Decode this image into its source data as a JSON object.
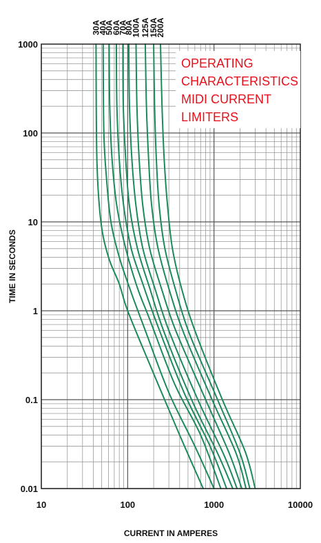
{
  "chart_data": {
    "type": "line",
    "title": "",
    "xlabel": "CURRENT IN AMPERES",
    "ylabel": "TIME IN SECONDS",
    "x_scale": "log",
    "y_scale": "log",
    "xlim": [
      10,
      10000
    ],
    "ylim": [
      0.01,
      1000
    ],
    "x_ticks": [
      {
        "value": 10,
        "label": "10"
      },
      {
        "value": 100,
        "label": "100"
      },
      {
        "value": 1000,
        "label": "1000"
      },
      {
        "value": 10000,
        "label": "10000"
      }
    ],
    "y_ticks": [
      {
        "value": 1000,
        "label": "1000"
      },
      {
        "value": 100,
        "label": "100"
      },
      {
        "value": 10,
        "label": "10"
      },
      {
        "value": 1,
        "label": "1"
      },
      {
        "value": 0.1,
        "label": "0.1"
      },
      {
        "value": 0.01,
        "label": "0.01"
      }
    ],
    "grid": true,
    "annotation": [
      "OPERATING",
      "CHARACTERISTICS",
      "MIDI CURRENT",
      "LIMITERS"
    ],
    "annotation_color": "#e8101a",
    "line_color": "#1a8a5a",
    "series": [
      {
        "name": "30A",
        "points": [
          [
            43,
            1000
          ],
          [
            44,
            50
          ],
          [
            49,
            10
          ],
          [
            60,
            4
          ],
          [
            80,
            2
          ],
          [
            100,
            1
          ],
          [
            180,
            0.25
          ],
          [
            400,
            0.04
          ],
          [
            750,
            0.01
          ]
        ]
      },
      {
        "name": "40A",
        "points": [
          [
            52,
            1000
          ],
          [
            53,
            100
          ],
          [
            57,
            30
          ],
          [
            64,
            10
          ],
          [
            80,
            4
          ],
          [
            110,
            1.6
          ],
          [
            160,
            0.6
          ],
          [
            300,
            0.12
          ],
          [
            600,
            0.03
          ],
          [
            1000,
            0.01
          ]
        ]
      },
      {
        "name": "50A",
        "points": [
          [
            61,
            1000
          ],
          [
            62,
            200
          ],
          [
            66,
            50
          ],
          [
            75,
            15
          ],
          [
            95,
            5
          ],
          [
            130,
            1.8
          ],
          [
            180,
            0.8
          ],
          [
            350,
            0.15
          ],
          [
            700,
            0.04
          ],
          [
            1200,
            0.01
          ]
        ]
      },
      {
        "name": "60A",
        "points": [
          [
            74,
            1000
          ],
          [
            75,
            200
          ],
          [
            80,
            50
          ],
          [
            90,
            15
          ],
          [
            110,
            5
          ],
          [
            150,
            2
          ],
          [
            220,
            0.7
          ],
          [
            450,
            0.12
          ],
          [
            900,
            0.03
          ],
          [
            1400,
            0.01
          ]
        ]
      },
      {
        "name": "70A",
        "points": [
          [
            88,
            1000
          ],
          [
            89,
            200
          ],
          [
            95,
            50
          ],
          [
            105,
            15
          ],
          [
            130,
            5
          ],
          [
            180,
            1.8
          ],
          [
            260,
            0.6
          ],
          [
            550,
            0.1
          ],
          [
            1100,
            0.025
          ],
          [
            1650,
            0.01
          ]
        ]
      },
      {
        "name": "80A",
        "points": [
          [
            103,
            1000
          ],
          [
            105,
            200
          ],
          [
            112,
            50
          ],
          [
            125,
            15
          ],
          [
            150,
            5
          ],
          [
            210,
            1.7
          ],
          [
            300,
            0.6
          ],
          [
            650,
            0.1
          ],
          [
            1300,
            0.024
          ],
          [
            1850,
            0.01
          ]
        ]
      },
      {
        "name": "100A",
        "points": [
          [
            125,
            1000
          ],
          [
            128,
            200
          ],
          [
            136,
            50
          ],
          [
            150,
            15
          ],
          [
            180,
            5
          ],
          [
            250,
            1.7
          ],
          [
            360,
            0.6
          ],
          [
            800,
            0.1
          ],
          [
            1500,
            0.025
          ],
          [
            2100,
            0.01
          ]
        ]
      },
      {
        "name": "125A",
        "points": [
          [
            160,
            1000
          ],
          [
            165,
            200
          ],
          [
            175,
            50
          ],
          [
            190,
            15
          ],
          [
            225,
            5
          ],
          [
            310,
            1.6
          ],
          [
            450,
            0.55
          ],
          [
            950,
            0.1
          ],
          [
            1800,
            0.025
          ],
          [
            2350,
            0.01
          ]
        ]
      },
      {
        "name": "150A",
        "points": [
          [
            200,
            1000
          ],
          [
            205,
            200
          ],
          [
            215,
            50
          ],
          [
            232,
            15
          ],
          [
            270,
            5
          ],
          [
            360,
            1.7
          ],
          [
            520,
            0.55
          ],
          [
            1100,
            0.1
          ],
          [
            2000,
            0.025
          ],
          [
            2600,
            0.01
          ]
        ]
      },
      {
        "name": "200A",
        "points": [
          [
            240,
            1000
          ],
          [
            250,
            200
          ],
          [
            265,
            50
          ],
          [
            290,
            15
          ],
          [
            330,
            5
          ],
          [
            420,
            1.8
          ],
          [
            600,
            0.6
          ],
          [
            1250,
            0.1
          ],
          [
            2300,
            0.026
          ],
          [
            3000,
            0.01
          ]
        ]
      }
    ]
  }
}
